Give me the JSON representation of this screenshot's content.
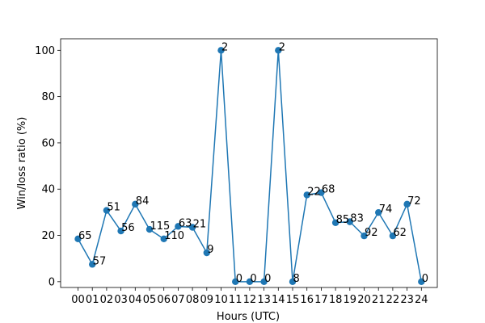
{
  "chart_data": {
    "type": "line",
    "title": "",
    "xlabel": "Hours (UTC)",
    "ylabel": "Win/loss ratio (%)",
    "ylim": [
      -2.5,
      105
    ],
    "yticks": [
      0,
      20,
      40,
      60,
      80,
      100
    ],
    "grid": false,
    "legend": false,
    "color": "#1f77b4",
    "categories": [
      "00",
      "01",
      "02",
      "03",
      "04",
      "05",
      "06",
      "07",
      "08",
      "09",
      "10",
      "11",
      "12",
      "13",
      "14",
      "15",
      "16",
      "17",
      "18",
      "19",
      "20",
      "21",
      "22",
      "23",
      "24"
    ],
    "series": [
      {
        "values": [
          18.5,
          7.5,
          30.8,
          21.9,
          33.5,
          22.6,
          18.5,
          23.9,
          23.5,
          12.5,
          100,
          0,
          0,
          0,
          100,
          0,
          37.5,
          38.5,
          25.5,
          25.9,
          19.8,
          29.9,
          19.8,
          33.5,
          0
        ],
        "labels": [
          "65",
          "57",
          "51",
          "56",
          "84",
          "115",
          "110",
          "63",
          "21",
          "9",
          "2",
          "0",
          "0",
          "0",
          "2",
          "8",
          "22",
          "68",
          "85",
          "83",
          "92",
          "74",
          "62",
          "72",
          "0"
        ]
      }
    ]
  }
}
